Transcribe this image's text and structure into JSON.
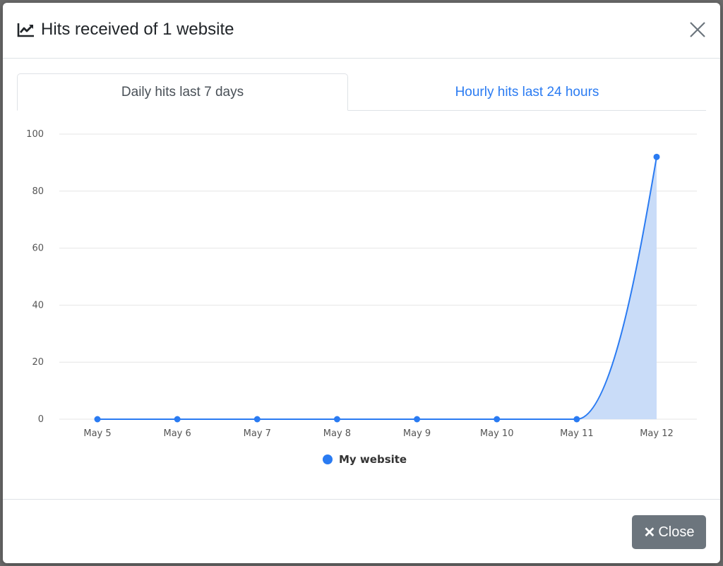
{
  "modal": {
    "title": "Hits received of 1 website",
    "close_label": "Close"
  },
  "tabs": [
    {
      "label": "Daily hits last 7 days",
      "active": true
    },
    {
      "label": "Hourly hits last 24 hours",
      "active": false
    }
  ],
  "icons": {
    "title": "chart-line-icon",
    "dismiss": "close-icon",
    "button": "times-icon"
  },
  "colors": {
    "accent": "#2a7bf2",
    "area_fill": "#c9dcf8",
    "button": "#6c757d"
  },
  "chart_data": {
    "type": "area",
    "categories": [
      "May 5",
      "May 6",
      "May 7",
      "May 8",
      "May 9",
      "May 10",
      "May 11",
      "May 12"
    ],
    "series": [
      {
        "name": "My website",
        "values": [
          0,
          0,
          0,
          0,
          0,
          0,
          0,
          92
        ],
        "color": "#2a7bf2"
      }
    ],
    "ylim": [
      0,
      100
    ],
    "yticks": [
      0,
      20,
      40,
      60,
      80,
      100
    ],
    "grid": true,
    "legend": "bottom-center"
  }
}
